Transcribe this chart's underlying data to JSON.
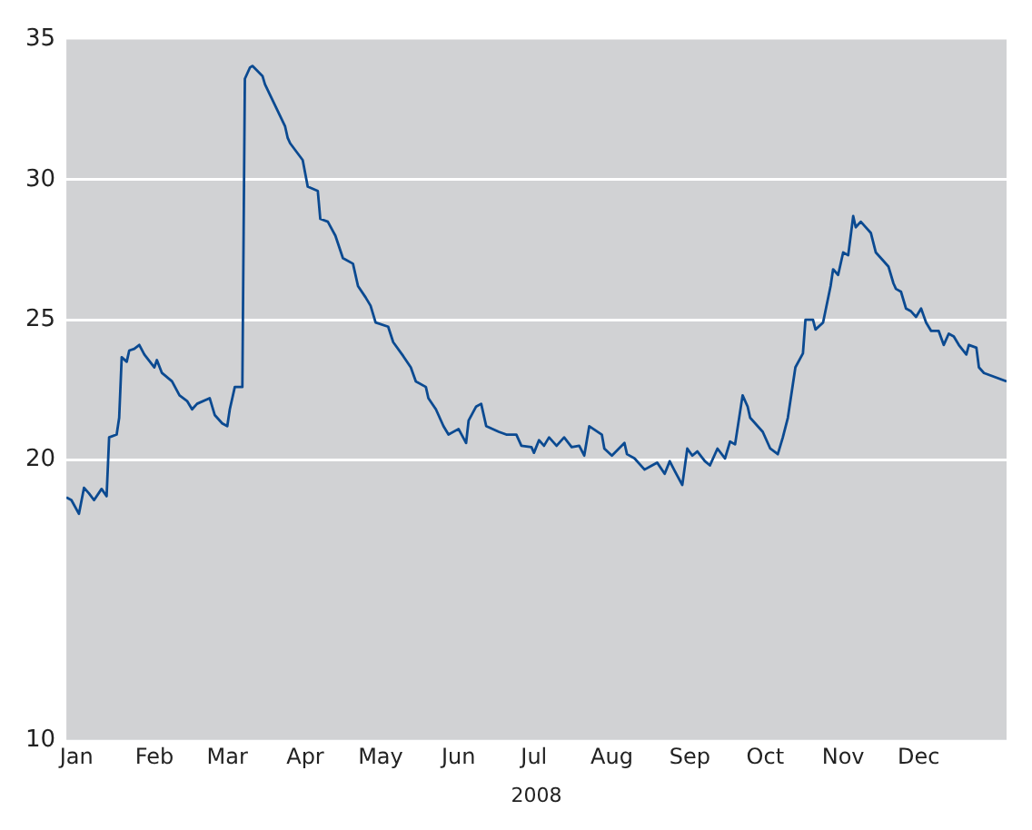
{
  "chart_data": {
    "type": "line",
    "xlabel": "2008",
    "xlim": [
      "2008-01-11",
      "2009-01-19"
    ],
    "xticks": [
      {
        "value": "2008-01-15",
        "label": "Jan"
      },
      {
        "value": "2008-02-15",
        "label": "Feb"
      },
      {
        "value": "2008-03-15",
        "label": "Mar"
      },
      {
        "value": "2008-04-15",
        "label": "Apr"
      },
      {
        "value": "2008-05-15",
        "label": "May"
      },
      {
        "value": "2008-06-15",
        "label": "Jun"
      },
      {
        "value": "2008-07-15",
        "label": "Jul"
      },
      {
        "value": "2008-08-15",
        "label": "Aug"
      },
      {
        "value": "2008-09-15",
        "label": "Sep"
      },
      {
        "value": "2008-10-15",
        "label": "Oct"
      },
      {
        "value": "2008-11-15",
        "label": "Nov"
      },
      {
        "value": "2008-12-15",
        "label": "Dec"
      }
    ],
    "ylim": [
      10,
      35
    ],
    "yticks": [
      10,
      20,
      25,
      30,
      35
    ],
    "grid": "y",
    "legend": false,
    "x": [
      "2008-01-11",
      "2008-01-13",
      "2008-01-16",
      "2008-01-18",
      "2008-01-20",
      "2008-01-22",
      "2008-01-25",
      "2008-01-27",
      "2008-01-28",
      "2008-01-31",
      "2008-02-01",
      "2008-02-02",
      "2008-02-04",
      "2008-02-05",
      "2008-02-07",
      "2008-02-09",
      "2008-02-11",
      "2008-02-15",
      "2008-02-16",
      "2008-02-18",
      "2008-02-22",
      "2008-02-25",
      "2008-02-28",
      "2008-03-01",
      "2008-03-03",
      "2008-03-08",
      "2008-03-10",
      "2008-03-13",
      "2008-03-15",
      "2008-03-16",
      "2008-03-18",
      "2008-03-21",
      "2008-03-22",
      "2008-03-24",
      "2008-03-25",
      "2008-03-29",
      "2008-03-30",
      "2008-04-07",
      "2008-04-08",
      "2008-04-09",
      "2008-04-14",
      "2008-04-16",
      "2008-04-20",
      "2008-04-21",
      "2008-04-24",
      "2008-04-27",
      "2008-04-30",
      "2008-05-04",
      "2008-05-06",
      "2008-05-09",
      "2008-05-11",
      "2008-05-13",
      "2008-05-18",
      "2008-05-20",
      "2008-05-24",
      "2008-05-27",
      "2008-05-29",
      "2008-06-02",
      "2008-06-03",
      "2008-06-06",
      "2008-06-09",
      "2008-06-11",
      "2008-06-15",
      "2008-06-18",
      "2008-06-19",
      "2008-06-22",
      "2008-06-24",
      "2008-06-26",
      "2008-07-01",
      "2008-07-04",
      "2008-07-08",
      "2008-07-10",
      "2008-07-14",
      "2008-07-15",
      "2008-07-17",
      "2008-07-19",
      "2008-07-21",
      "2008-07-24",
      "2008-07-27",
      "2008-07-30",
      "2008-08-02",
      "2008-08-04",
      "2008-08-06",
      "2008-08-11",
      "2008-08-12",
      "2008-08-15",
      "2008-08-20",
      "2008-08-21",
      "2008-08-24",
      "2008-08-28",
      "2008-08-31",
      "2008-09-02",
      "2008-09-05",
      "2008-09-07",
      "2008-09-09",
      "2008-09-12",
      "2008-09-14",
      "2008-09-16",
      "2008-09-18",
      "2008-09-21",
      "2008-09-23",
      "2008-09-26",
      "2008-09-29",
      "2008-10-01",
      "2008-10-03",
      "2008-10-06",
      "2008-10-08",
      "2008-10-09",
      "2008-10-14",
      "2008-10-17",
      "2008-10-20",
      "2008-10-22",
      "2008-10-24",
      "2008-10-27",
      "2008-10-30",
      "2008-10-31",
      "2008-11-03",
      "2008-11-04",
      "2008-11-07",
      "2008-11-10",
      "2008-11-11",
      "2008-11-13",
      "2008-11-15",
      "2008-11-17",
      "2008-11-19",
      "2008-11-20",
      "2008-11-22",
      "2008-11-26",
      "2008-11-28",
      "2008-12-01",
      "2008-12-03",
      "2008-12-05",
      "2008-12-06",
      "2008-12-08",
      "2008-12-10",
      "2008-12-12",
      "2008-12-14",
      "2008-12-16",
      "2008-12-18",
      "2008-12-20",
      "2008-12-23",
      "2008-12-25",
      "2008-12-27",
      "2008-12-29",
      "2008-12-31",
      "2009-01-03",
      "2009-01-04",
      "2009-01-07",
      "2009-01-08",
      "2009-01-10",
      "2009-01-19"
    ],
    "series": [
      {
        "color": "#0b4a91",
        "values": [
          18.66,
          18.56,
          18.07,
          19.0,
          18.8,
          18.56,
          18.96,
          18.7,
          20.8,
          20.9,
          21.5,
          23.66,
          23.5,
          23.9,
          23.96,
          24.1,
          23.76,
          23.3,
          23.56,
          23.1,
          22.8,
          22.3,
          22.1,
          21.8,
          22.0,
          22.2,
          21.6,
          21.3,
          21.2,
          21.8,
          22.6,
          22.6,
          33.6,
          34.0,
          34.06,
          33.7,
          33.4,
          31.9,
          31.5,
          31.3,
          30.7,
          29.75,
          29.6,
          28.6,
          28.5,
          28.0,
          27.2,
          27.0,
          26.2,
          25.8,
          25.5,
          24.9,
          24.75,
          24.2,
          23.7,
          23.3,
          22.8,
          22.6,
          22.2,
          21.8,
          21.2,
          20.9,
          21.1,
          20.6,
          21.4,
          21.9,
          22.0,
          21.2,
          21.0,
          20.9,
          20.9,
          20.5,
          20.45,
          20.25,
          20.7,
          20.5,
          20.8,
          20.5,
          20.8,
          20.45,
          20.5,
          20.15,
          21.2,
          20.9,
          20.4,
          20.15,
          20.6,
          20.2,
          20.05,
          19.65,
          19.8,
          19.9,
          19.5,
          19.95,
          19.6,
          19.1,
          20.4,
          20.15,
          20.3,
          19.95,
          19.8,
          20.4,
          20.05,
          20.65,
          20.55,
          22.3,
          21.9,
          21.5,
          21.0,
          20.4,
          20.2,
          20.8,
          21.5,
          23.3,
          23.8,
          25.0,
          25.0,
          24.65,
          24.9,
          26.2,
          26.8,
          26.6,
          27.4,
          27.3,
          28.7,
          28.3,
          28.5,
          28.1,
          27.4,
          27.1,
          26.9,
          26.3,
          26.1,
          26.0,
          25.4,
          25.3,
          25.1,
          25.4,
          24.9,
          24.6,
          24.6,
          24.1,
          24.5,
          24.4,
          24.1,
          23.76,
          24.1,
          24.0,
          23.3,
          23.1,
          22.8
        ]
      }
    ]
  }
}
